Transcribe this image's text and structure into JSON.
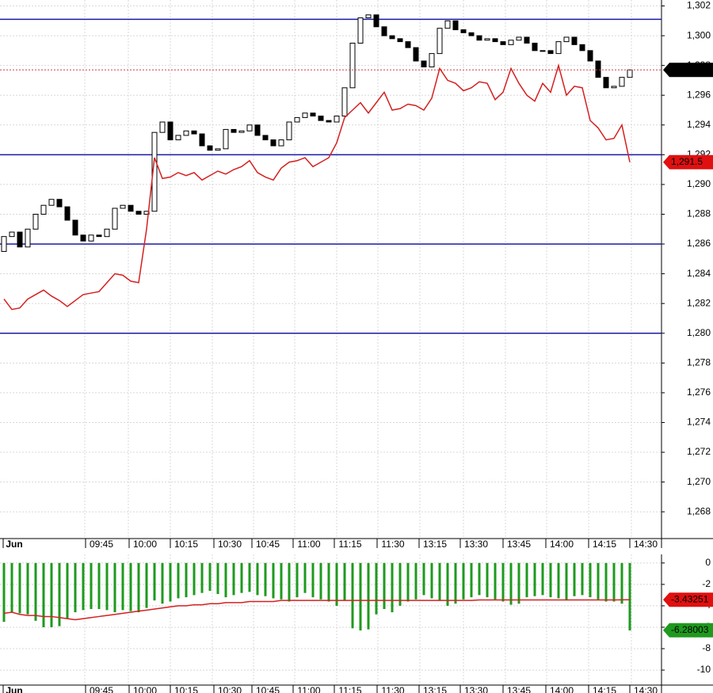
{
  "chart_data": [
    {
      "type": "candlestick",
      "open": [
        1285.5,
        1286.5,
        1286.8,
        1285.8,
        1287,
        1288,
        1288.6,
        1289,
        1288.5,
        1287.6,
        1286.6,
        1286.2,
        1286.6,
        1286.5,
        1287,
        1288.4,
        1288.6,
        1288.2,
        1288,
        1288.2,
        1293.5,
        1294.2,
        1293,
        1293.3,
        1293.6,
        1293.4,
        1292.6,
        1292.3,
        1292.4,
        1293.7,
        1293.5,
        1293.6,
        1294,
        1293.3,
        1293,
        1292.6,
        1293,
        1294.2,
        1294.5,
        1294.8,
        1294.6,
        1294.3,
        1294.2,
        1294.6,
        1296.5,
        1299.5,
        1301.2,
        1301.4,
        1300.6,
        1300,
        1299.8,
        1299.6,
        1299.2,
        1298.3,
        1297.9,
        1298.8,
        1300.5,
        1301,
        1300.4,
        1300.2,
        1300,
        1299.7,
        1299.8,
        1299.6,
        1299.4,
        1299.7,
        1299.9,
        1299.5,
        1299,
        1299,
        1298.8,
        1299.6,
        1299.9,
        1299.4,
        1299,
        1298.3,
        1297.2,
        1296.5,
        1296.6,
        1297.2
      ],
      "close": [
        1286.5,
        1286.8,
        1285.8,
        1287,
        1288,
        1288.6,
        1289,
        1288.5,
        1287.6,
        1286.6,
        1286.2,
        1286.6,
        1286.5,
        1287,
        1288.4,
        1288.6,
        1288.2,
        1288,
        1288.2,
        1293.5,
        1294.2,
        1293,
        1293.3,
        1293.6,
        1293.4,
        1292.6,
        1292.3,
        1292.4,
        1293.7,
        1293.5,
        1293.6,
        1294,
        1293.3,
        1293,
        1292.6,
        1293,
        1294.2,
        1294.5,
        1294.8,
        1294.6,
        1294.3,
        1294.2,
        1294.6,
        1296.5,
        1299.5,
        1301.2,
        1301.4,
        1300.6,
        1300,
        1299.8,
        1299.6,
        1299.2,
        1298.3,
        1297.9,
        1298.8,
        1300.5,
        1301,
        1300.4,
        1300.2,
        1300,
        1299.7,
        1299.8,
        1299.6,
        1299.4,
        1299.7,
        1299.9,
        1299.5,
        1299,
        1299,
        1298.8,
        1299.6,
        1299.9,
        1299.4,
        1299,
        1298.3,
        1297.2,
        1296.5,
        1296.6,
        1297.2,
        1297.7
      ],
      "color_up": "#ffffff",
      "color_down": "#000000",
      "line": {
        "color": "#d42020",
        "values": [
          1282.3,
          1281.6,
          1281.7,
          1282.3,
          1282.6,
          1282.9,
          1282.5,
          1282.2,
          1281.8,
          1282.2,
          1282.6,
          1282.7,
          1282.8,
          1283.4,
          1284,
          1283.9,
          1283.5,
          1283.4,
          1287,
          1291.8,
          1290.4,
          1290.5,
          1290.8,
          1290.6,
          1290.8,
          1290.3,
          1290.6,
          1290.9,
          1290.7,
          1291,
          1291.2,
          1291.6,
          1290.8,
          1290.5,
          1290.3,
          1291.1,
          1291.5,
          1291.6,
          1291.8,
          1291.2,
          1291.5,
          1291.8,
          1292.8,
          1294.5,
          1295,
          1295.5,
          1294.8,
          1295.5,
          1296.2,
          1295,
          1295.1,
          1295.4,
          1295.3,
          1295,
          1295.8,
          1297.8,
          1297,
          1296.8,
          1296.3,
          1296.5,
          1296.9,
          1296.8,
          1295.7,
          1296.2,
          1297.8,
          1296.8,
          1296,
          1295.6,
          1296.8,
          1296.2,
          1298,
          1296,
          1296.6,
          1296.5,
          1294.3,
          1293.8,
          1293,
          1293.1,
          1294,
          1291.5
        ]
      },
      "levels": {
        "color": "#1a1aa8",
        "values": [
          1301.1,
          1292,
          1286,
          1280
        ]
      },
      "tags": [
        {
          "value": 1297.7,
          "label": "1,297.7",
          "color": "#000000"
        },
        {
          "value": 1291.5,
          "label": "1,291.5",
          "color": "#e01010"
        }
      ],
      "x_labels": [
        "Jun",
        "09:45",
        "10:00",
        "10:15",
        "10:30",
        "10:45",
        "11:00",
        "11:15",
        "11:30",
        "13:15",
        "13:30",
        "13:45",
        "14:00",
        "14:15",
        "14:30"
      ],
      "ylim": [
        1266.2,
        1302.4
      ],
      "yticks": [
        {
          "value": 1268,
          "label": "1,268"
        },
        {
          "value": 1270,
          "label": "1,270"
        },
        {
          "value": 1272,
          "label": "1,272"
        },
        {
          "value": 1274,
          "label": "1,274"
        },
        {
          "value": 1276,
          "label": "1,276"
        },
        {
          "value": 1278,
          "label": "1,278"
        },
        {
          "value": 1280,
          "label": "1,280"
        },
        {
          "value": 1282,
          "label": "1,282"
        },
        {
          "value": 1284,
          "label": "1,284"
        },
        {
          "value": 1286,
          "label": "1,286"
        },
        {
          "value": 1288,
          "label": "1,288"
        },
        {
          "value": 1290,
          "label": "1,290"
        },
        {
          "value": 1292,
          "label": "1,292"
        },
        {
          "value": 1294,
          "label": "1,294"
        },
        {
          "value": 1296,
          "label": "1,296"
        },
        {
          "value": 1298,
          "label": "1,298"
        },
        {
          "value": 1300,
          "label": "1,300"
        },
        {
          "value": 1302,
          "label": "1,302"
        }
      ],
      "grid": true
    },
    {
      "type": "bar",
      "color": "#1e9a1e",
      "values": [
        -5.5,
        -4.6,
        -4.7,
        -4.8,
        -5.4,
        -6,
        -6,
        -5.9,
        -5.2,
        -4.6,
        -4.4,
        -4.3,
        -4.3,
        -4.4,
        -4.6,
        -4.4,
        -4.5,
        -4.6,
        -4.2,
        -3.5,
        -3.8,
        -3.6,
        -3.3,
        -3.2,
        -3.0,
        -2.8,
        -2.6,
        -2.9,
        -3.2,
        -3.0,
        -2.8,
        -2.7,
        -3.0,
        -3.1,
        -3.3,
        -3.4,
        -3.6,
        -3.2,
        -2.8,
        -3.2,
        -3.4,
        -3.6,
        -4.0,
        -3.5,
        -6.1,
        -6.3,
        -6.2,
        -4.8,
        -4.3,
        -4.6,
        -4.0,
        -3.6,
        -3.4,
        -3.0,
        -3.3,
        -3.5,
        -4.0,
        -3.8,
        -3.4,
        -3.2,
        -3.0,
        -3.2,
        -3.4,
        -3.6,
        -3.9,
        -3.8,
        -3.2,
        -3.1,
        -3.0,
        -3.2,
        -3.3,
        -3.5,
        -3.1,
        -3.0,
        -3.2,
        -3.4,
        -3.6,
        -3.6,
        -3.8,
        -6.3
      ],
      "line": {
        "color": "#d42020",
        "values": [
          -4.7,
          -4.6,
          -4.8,
          -4.9,
          -4.9,
          -5.0,
          -5.0,
          -5.1,
          -5.2,
          -5.3,
          -5.2,
          -5.1,
          -5.0,
          -4.9,
          -4.8,
          -4.7,
          -4.6,
          -4.5,
          -4.4,
          -4.3,
          -4.2,
          -4.1,
          -4.0,
          -4.0,
          -3.9,
          -3.9,
          -3.8,
          -3.8,
          -3.7,
          -3.7,
          -3.7,
          -3.6,
          -3.6,
          -3.6,
          -3.6,
          -3.5,
          -3.5,
          -3.5,
          -3.5,
          -3.5,
          -3.5,
          -3.5,
          -3.5,
          -3.5,
          -3.5,
          -3.5,
          -3.5,
          -3.5,
          -3.5,
          -3.5,
          -3.5,
          -3.5,
          -3.5,
          -3.5,
          -3.5,
          -3.5,
          -3.5,
          -3.5,
          -3.5,
          -3.5,
          -3.45,
          -3.45,
          -3.45,
          -3.45,
          -3.45,
          -3.45,
          -3.45,
          -3.45,
          -3.45,
          -3.45,
          -3.45,
          -3.45,
          -3.45,
          -3.45,
          -3.45,
          -3.45,
          -3.45,
          -3.45,
          -3.44,
          -3.43
        ]
      },
      "tags": [
        {
          "value": -3.43251,
          "label": "-3.43251",
          "color": "#e01010"
        },
        {
          "value": -6.28003,
          "label": "-6.28003",
          "color": "#1e9a1e"
        }
      ],
      "x_labels": [
        "Jun",
        "09:45",
        "10:00",
        "10:15",
        "10:30",
        "10:45",
        "11:00",
        "11:15",
        "11:30",
        "13:15",
        "13:30",
        "13:45",
        "14:00",
        "14:15",
        "14:30"
      ],
      "ylim": [
        -11.4,
        0.8
      ],
      "yticks": [
        0,
        -2,
        -4,
        -6,
        -8,
        -10
      ],
      "grid": true
    }
  ]
}
